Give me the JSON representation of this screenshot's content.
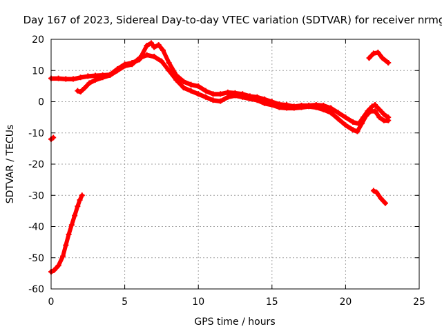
{
  "chart_data": {
    "type": "line",
    "title": "Day 167 of 2023, Sidereal Day-to-day VTEC variation (SDTVAR) for receiver nrmg",
    "xlabel": "GPS time / hours",
    "ylabel": "SDTVAR / TECUs",
    "xlim": [
      0,
      25
    ],
    "ylim": [
      -60,
      20
    ],
    "xticks": [
      0,
      5,
      10,
      15,
      20,
      25
    ],
    "yticks": [
      -60,
      -50,
      -40,
      -30,
      -20,
      -10,
      0,
      10,
      20
    ],
    "grid": true,
    "legend": "none",
    "series_color": "#ff0000",
    "series": [
      {
        "name": "arc-main-upper",
        "x": [
          0,
          0.5,
          1.0,
          1.5,
          2.0,
          2.5,
          3.0,
          3.5,
          4.0,
          4.5,
          5.0,
          5.5,
          6.0,
          6.5,
          6.8,
          7.0,
          7.3,
          7.6,
          8.0,
          8.5,
          9.0,
          9.5,
          10.0,
          10.5,
          11.0,
          11.5,
          12.0,
          12.5,
          13.0,
          13.5,
          14.0,
          14.5,
          15.0,
          15.5,
          16.0,
          16.5,
          17.0,
          17.5,
          18.0,
          18.5,
          19.0,
          19.5,
          20.0,
          20.5,
          20.9,
          21.2,
          21.5,
          21.8,
          22.0,
          22.3,
          22.6,
          22.9
        ],
        "y": [
          7.5,
          7.5,
          7.3,
          7.3,
          7.8,
          8.2,
          8.4,
          8.5,
          8.7,
          10.5,
          12.0,
          12.5,
          13.5,
          18.0,
          18.8,
          17.5,
          18.2,
          16.5,
          12.5,
          8.5,
          6.5,
          5.5,
          5.0,
          3.5,
          2.5,
          2.5,
          3.0,
          2.8,
          2.5,
          1.8,
          1.5,
          0.8,
          0.0,
          -0.8,
          -1.0,
          -1.5,
          -1.2,
          -1.2,
          -1.0,
          -1.2,
          -2.0,
          -3.5,
          -5.0,
          -6.5,
          -7.0,
          -5.0,
          -3.0,
          -1.5,
          -1.0,
          -2.5,
          -4.0,
          -5.0
        ]
      },
      {
        "name": "arc-main-lower",
        "x": [
          1.8,
          2.0,
          2.3,
          2.6,
          3.0,
          3.5,
          4.0,
          4.5,
          5.0,
          5.5,
          6.0,
          6.5,
          7.0,
          7.5,
          8.0,
          8.5,
          9.0,
          9.5,
          10.0,
          10.5,
          11.0,
          11.5,
          12.0,
          12.5,
          13.0,
          13.5,
          14.0,
          14.5,
          15.0,
          15.5,
          16.0,
          16.5,
          17.0,
          17.5,
          18.0,
          18.5,
          19.0,
          19.5,
          20.0,
          20.5,
          20.8,
          21.1,
          21.4,
          21.7,
          22.0,
          22.3,
          22.6,
          22.9
        ],
        "y": [
          3.5,
          3.2,
          4.5,
          6.0,
          7.0,
          7.8,
          8.5,
          10.0,
          11.5,
          12.0,
          14.0,
          15.0,
          14.5,
          13.0,
          10.0,
          7.0,
          4.5,
          3.5,
          2.5,
          1.5,
          0.5,
          0.2,
          1.5,
          2.0,
          1.5,
          1.0,
          0.5,
          -0.5,
          -1.0,
          -1.8,
          -2.0,
          -2.0,
          -1.8,
          -1.5,
          -1.8,
          -2.5,
          -3.5,
          -5.5,
          -7.5,
          -9.0,
          -9.5,
          -7.0,
          -4.5,
          -3.0,
          -3.0,
          -5.0,
          -6.0,
          -6.0
        ]
      },
      {
        "name": "arc-upper-right",
        "x": [
          21.6,
          21.9,
          22.2,
          22.5,
          22.9
        ],
        "y": [
          14.0,
          15.5,
          15.8,
          14.0,
          12.5
        ]
      },
      {
        "name": "arc-lower-right",
        "x": [
          21.9,
          22.1,
          22.4,
          22.7
        ],
        "y": [
          -28.5,
          -29.0,
          -31.0,
          -32.5
        ]
      },
      {
        "name": "arc-early-point",
        "x": [
          0.0,
          0.15
        ],
        "y": [
          -12.0,
          -11.5
        ]
      },
      {
        "name": "arc-rising-left",
        "x": [
          0.0,
          0.2,
          0.5,
          0.8,
          1.0,
          1.2,
          1.4,
          1.6,
          1.8,
          1.95,
          2.1
        ],
        "y": [
          -54.5,
          -54.0,
          -52.5,
          -49.5,
          -46.0,
          -42.5,
          -39.5,
          -36.5,
          -33.5,
          -31.5,
          -30.0
        ]
      }
    ]
  }
}
